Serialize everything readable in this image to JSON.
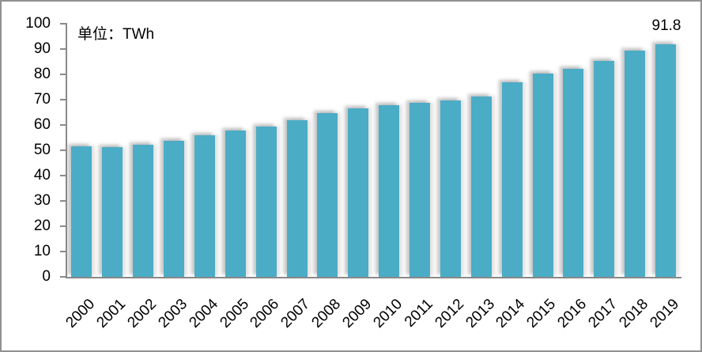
{
  "chart": {
    "unit_label": "单位：TWh",
    "annotation_2019": "91.8"
  },
  "chart_data": {
    "type": "bar",
    "title": "",
    "unit_label": "单位：TWh",
    "xlabel": "",
    "ylabel": "",
    "categories": [
      "2000",
      "2001",
      "2002",
      "2003",
      "2004",
      "2005",
      "2006",
      "2007",
      "2008",
      "2009",
      "2010",
      "2011",
      "2012",
      "2013",
      "2014",
      "2015",
      "2016",
      "2017",
      "2018",
      "2019"
    ],
    "values": [
      51.7,
      51.2,
      52.1,
      53.9,
      56.0,
      57.9,
      59.3,
      62.0,
      64.7,
      66.5,
      67.8,
      68.8,
      69.8,
      71.3,
      77.0,
      80.3,
      82.3,
      85.4,
      89.4,
      91.8
    ],
    "data_labels": [
      {
        "category": "2019",
        "text": "91.8"
      }
    ],
    "ylim": [
      0,
      100
    ],
    "yticks": [
      0,
      10,
      20,
      30,
      40,
      50,
      60,
      70,
      80,
      90,
      100
    ],
    "grid": false,
    "legend": false,
    "bar_color": "#4BACC6",
    "axis_color": "#8A8A8A",
    "text_color": "#000000",
    "border_color": "#919191",
    "background_color": "#FFFFFF"
  }
}
